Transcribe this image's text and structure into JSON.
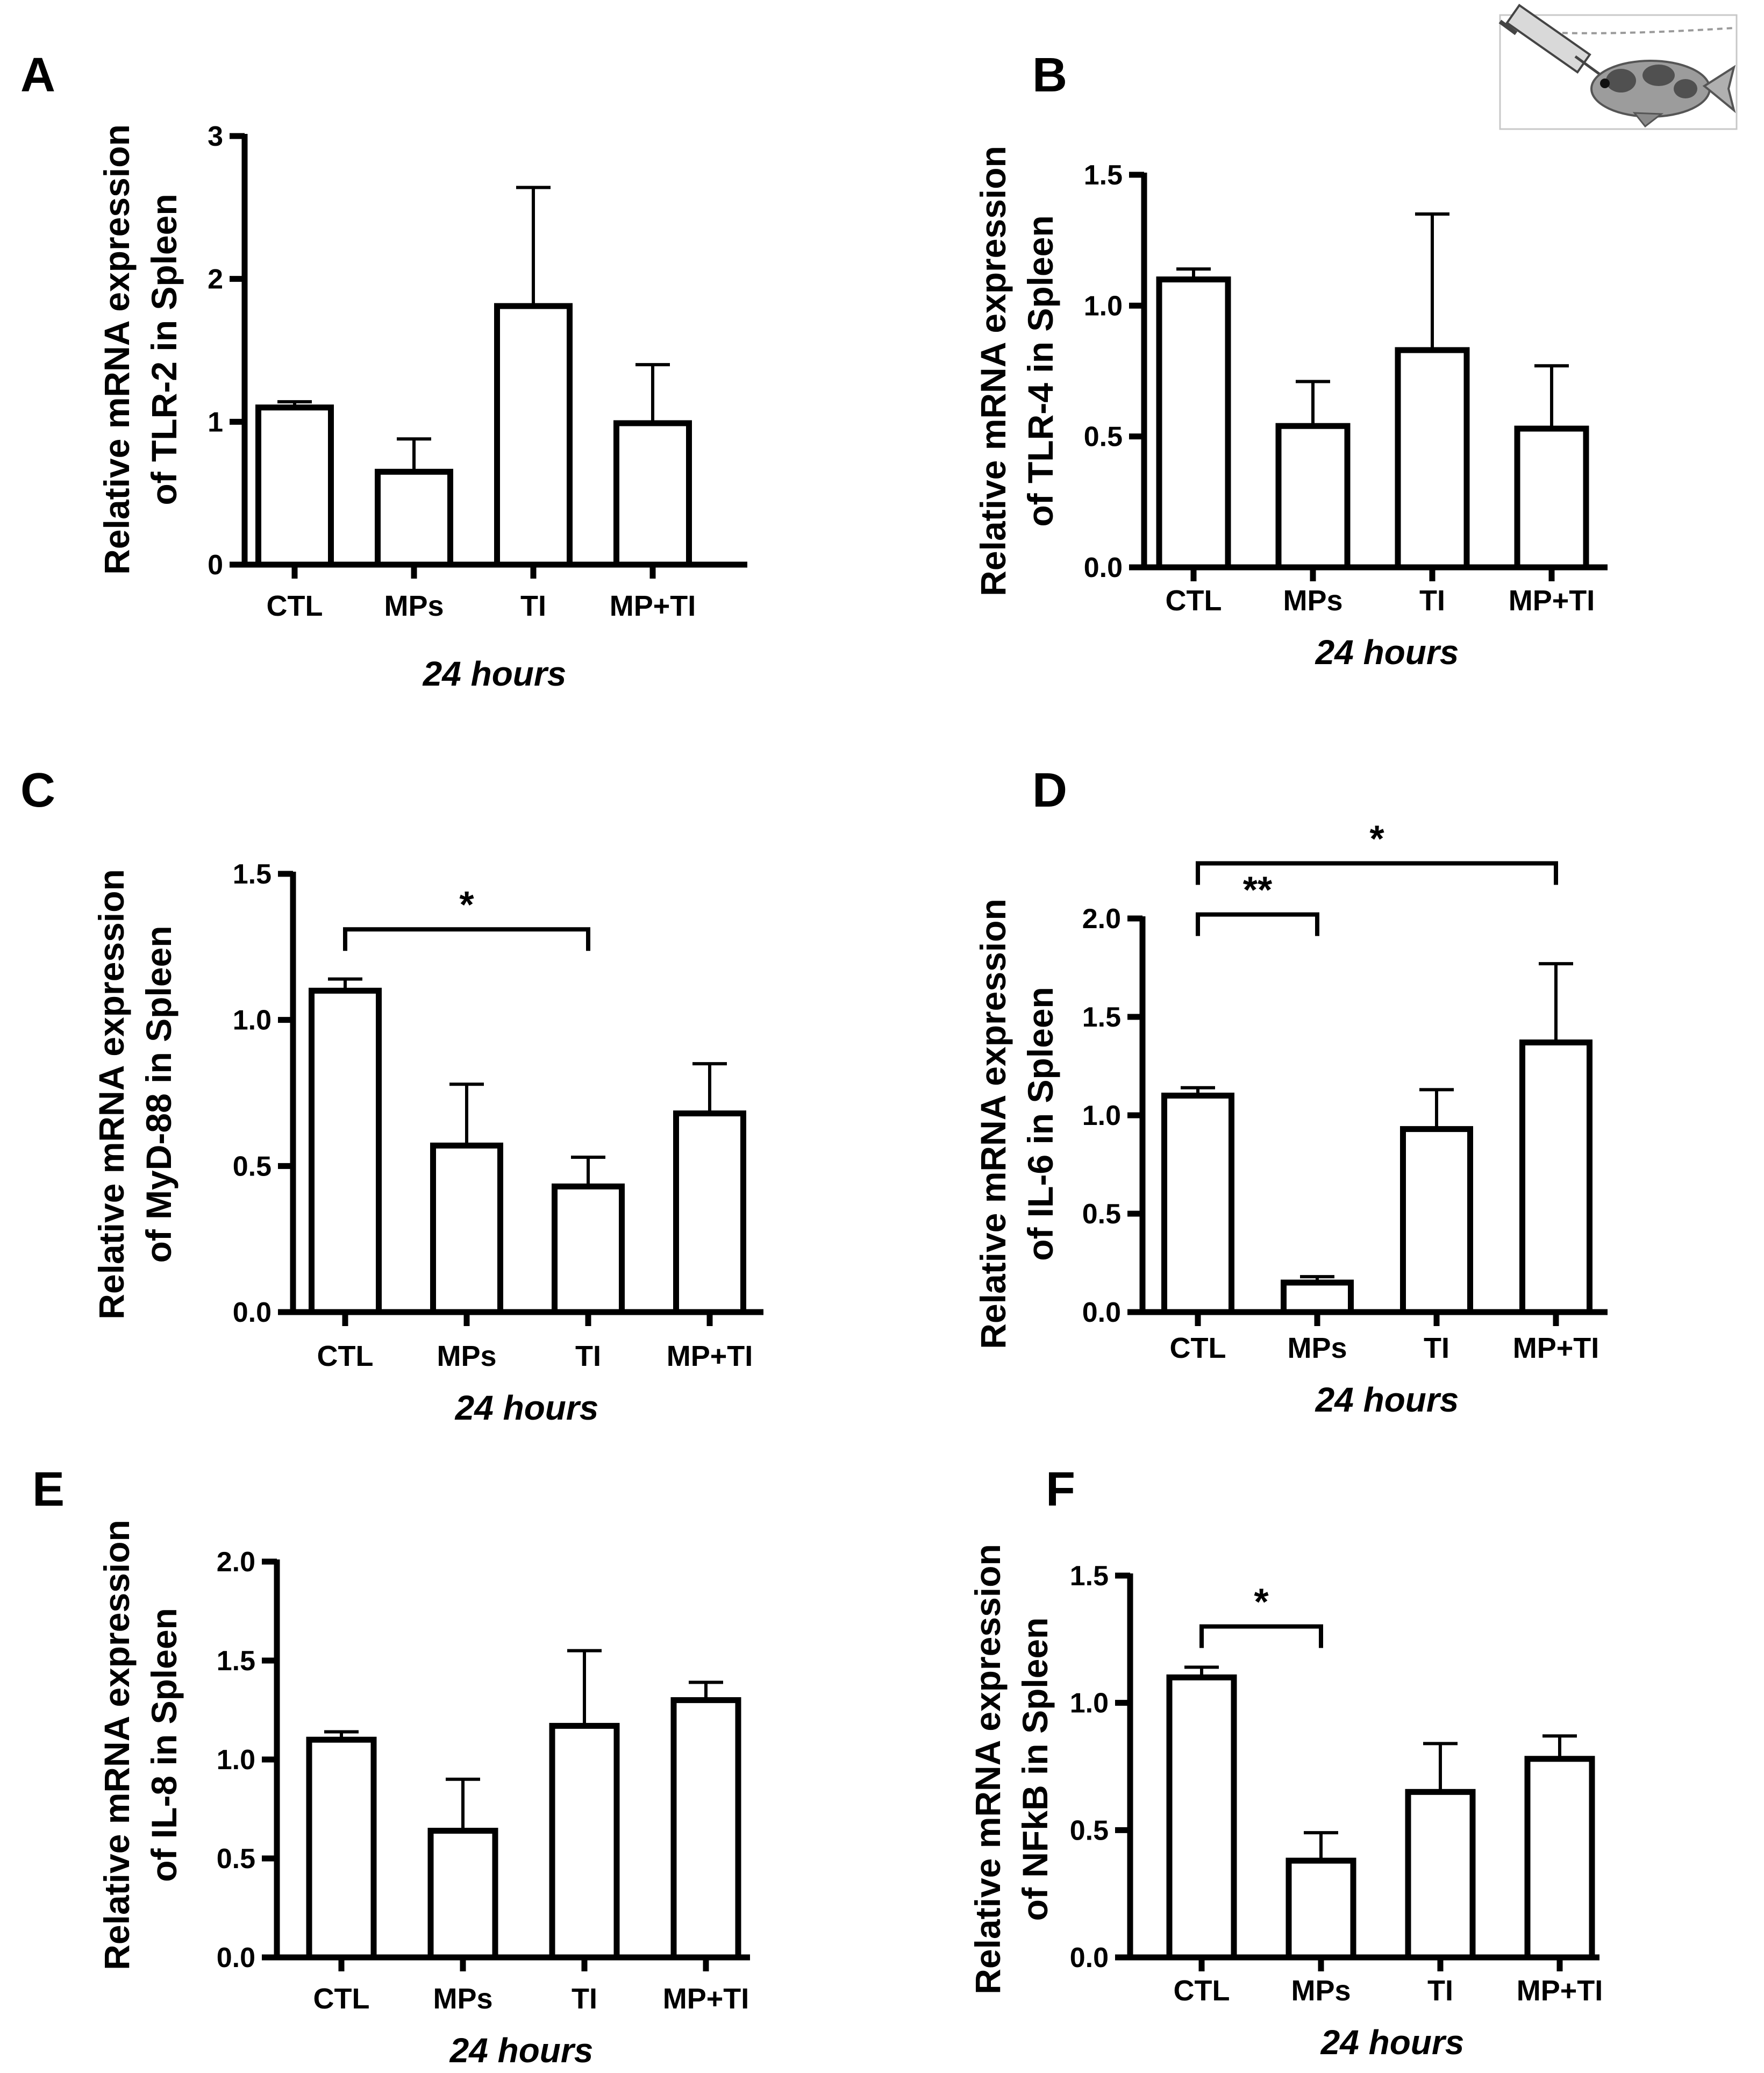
{
  "figure": {
    "icon": "fish-injection-illustration"
  },
  "chart_data": [
    {
      "panel": "A",
      "type": "bar",
      "categories": [
        "CTL",
        "MPs",
        "TI",
        "MP+TI"
      ],
      "values": [
        1.1,
        0.65,
        1.81,
        0.99
      ],
      "errors": [
        0.04,
        0.23,
        0.83,
        0.41
      ],
      "ylabel_line1": "Relative mRNA expression",
      "ylabel_line2": "of TLR-2 in Spleen",
      "xlabel": "24 hours",
      "ylim": [
        0,
        3
      ],
      "yticks": [
        0,
        1,
        2,
        3
      ],
      "ytick_labels": [
        "0",
        "1",
        "2",
        "3"
      ],
      "significance": []
    },
    {
      "panel": "B",
      "type": "bar",
      "categories": [
        "CTL",
        "MPs",
        "TI",
        "MP+TI"
      ],
      "values": [
        1.1,
        0.54,
        0.83,
        0.53
      ],
      "errors": [
        0.04,
        0.17,
        0.52,
        0.24
      ],
      "ylabel_line1": "Relative mRNA expression",
      "ylabel_line2": "of TLR-4 in Spleen",
      "xlabel": "24 hours",
      "ylim": [
        0,
        1.5
      ],
      "yticks": [
        0,
        0.5,
        1,
        1.5
      ],
      "ytick_labels": [
        "0.0",
        "0.5",
        "1.0",
        "1.5"
      ],
      "significance": []
    },
    {
      "panel": "C",
      "type": "bar",
      "categories": [
        "CTL",
        "MPs",
        "TI",
        "MP+TI"
      ],
      "values": [
        1.1,
        0.57,
        0.43,
        0.68
      ],
      "errors": [
        0.04,
        0.21,
        0.1,
        0.17
      ],
      "ylabel_line1": "Relative mRNA expression",
      "ylabel_line2": "of MyD-88 in Spleen",
      "xlabel": "24 hours",
      "ylim": [
        0,
        1.5
      ],
      "yticks": [
        0,
        0.5,
        1,
        1.5
      ],
      "ytick_labels": [
        "0.0",
        "0.5",
        "1.0",
        "1.5"
      ],
      "significance": [
        {
          "from": 0,
          "to": 2,
          "label": "*",
          "y": 1.31
        }
      ]
    },
    {
      "panel": "D",
      "type": "bar",
      "categories": [
        "CTL",
        "MPs",
        "TI",
        "MP+TI"
      ],
      "values": [
        1.1,
        0.15,
        0.93,
        1.37
      ],
      "errors": [
        0.04,
        0.03,
        0.2,
        0.4
      ],
      "ylabel_line1": "Relative mRNA expression",
      "ylabel_line2": "of IL-6 in Spleen",
      "xlabel": "24 hours",
      "ylim": [
        0,
        2
      ],
      "yticks": [
        0,
        0.5,
        1,
        1.5,
        2
      ],
      "ytick_labels": [
        "0.0",
        "0.5",
        "1.0",
        "1.5",
        "2.0"
      ],
      "significance": [
        {
          "from": 0,
          "to": 1,
          "label": "**",
          "y": 2.02
        },
        {
          "from": 0,
          "to": 3,
          "label": "*",
          "y": 2.28
        }
      ]
    },
    {
      "panel": "E",
      "type": "bar",
      "categories": [
        "CTL",
        "MPs",
        "TI",
        "MP+TI"
      ],
      "values": [
        1.1,
        0.64,
        1.17,
        1.3
      ],
      "errors": [
        0.04,
        0.26,
        0.38,
        0.09
      ],
      "ylabel_line1": "Relative mRNA expression",
      "ylabel_line2": "of IL-8 in Spleen",
      "xlabel": "24 hours",
      "ylim": [
        0,
        2
      ],
      "yticks": [
        0,
        0.5,
        1,
        1.5,
        2
      ],
      "ytick_labels": [
        "0.0",
        "0.5",
        "1.0",
        "1.5",
        "2.0"
      ],
      "significance": []
    },
    {
      "panel": "F",
      "type": "bar",
      "categories": [
        "CTL",
        "MPs",
        "TI",
        "MP+TI"
      ],
      "values": [
        1.1,
        0.38,
        0.65,
        0.78
      ],
      "errors": [
        0.04,
        0.11,
        0.19,
        0.09
      ],
      "ylabel_line1": "Relative mRNA expression",
      "ylabel_line2": "of NFkB in Spleen",
      "xlabel": "24 hours",
      "ylim": [
        0,
        1.5
      ],
      "yticks": [
        0,
        0.5,
        1,
        1.5
      ],
      "ytick_labels": [
        "0.0",
        "0.5",
        "1.0",
        "1.5"
      ],
      "significance": [
        {
          "from": 0,
          "to": 1,
          "label": "*",
          "y": 1.3
        }
      ]
    }
  ]
}
